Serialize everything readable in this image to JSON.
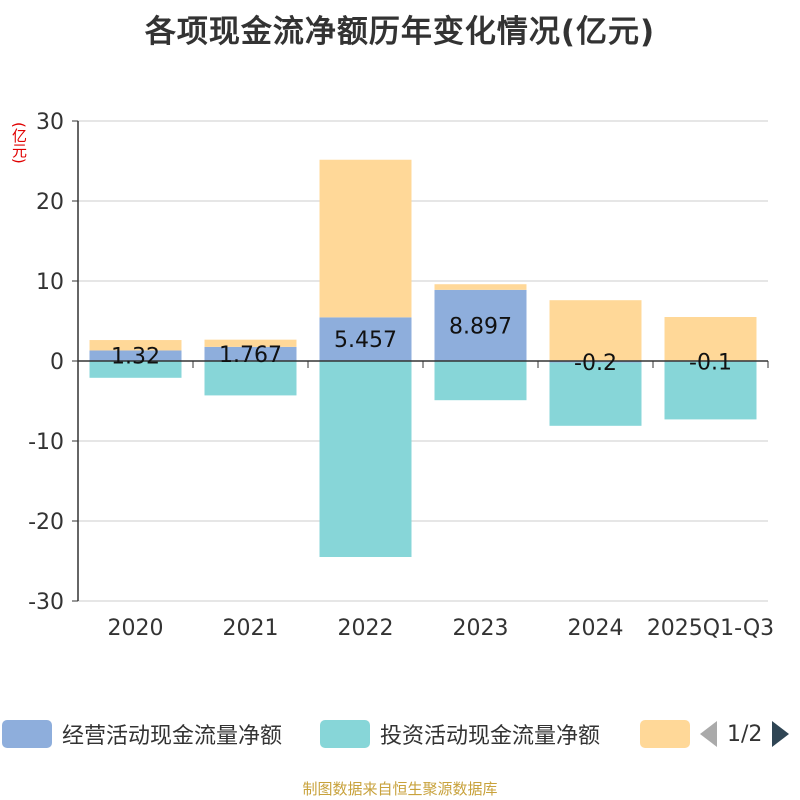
{
  "colors": {
    "operating": "#8eaedc",
    "investing": "#87d6d8",
    "financing": "#ffd898",
    "axis": "#333333",
    "grid": "#cccccc"
  },
  "source": "制图数据来自恒生聚源数据库",
  "chart_data": {
    "type": "bar",
    "stacked": true,
    "title": "各项现金流净额历年变化情况(亿元)",
    "ylabel": "(亿元)",
    "xlabel": "",
    "ylim": [
      -30,
      30
    ],
    "yticks": [
      -30,
      -20,
      -10,
      0,
      10,
      20,
      30
    ],
    "grid": true,
    "legend_position": "bottom",
    "categories": [
      "2020",
      "2021",
      "2022",
      "2023",
      "2024",
      "2025Q1-Q3"
    ],
    "series": [
      {
        "name": "经营活动现金流量净额",
        "values": [
          1.32,
          1.767,
          5.457,
          8.897,
          -0.2,
          -0.1
        ],
        "labels": [
          "1.32",
          "1.767",
          "5.457",
          "8.897",
          "-0.2",
          "-0.1"
        ]
      },
      {
        "name": "投资活动现金流量净额",
        "values": [
          -2.1,
          -4.3,
          -24.5,
          -4.9,
          -7.9,
          -7.2
        ]
      },
      {
        "name": "",
        "values": [
          1.3,
          0.9,
          19.7,
          0.7,
          7.6,
          5.5
        ]
      }
    ]
  },
  "legend": {
    "items": [
      {
        "label": "经营活动现金流量净额"
      },
      {
        "label": "投资活动现金流量净额"
      },
      {
        "label": ""
      }
    ],
    "page": "1/2"
  }
}
